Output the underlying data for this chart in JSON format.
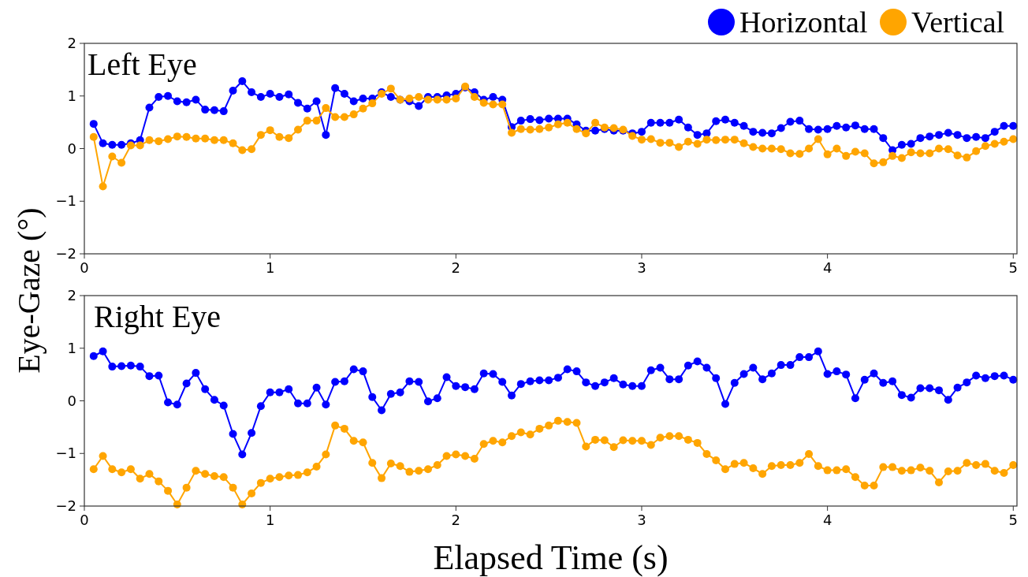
{
  "chart_data": [
    {
      "type": "line",
      "title": "Left Eye",
      "ylabel": "Eye-Gaze (°)",
      "legend": "top right",
      "marker": "circle",
      "line_style": "solid",
      "grid": false,
      "x": [
        0.05,
        0.1,
        0.15,
        0.2,
        0.25,
        0.3,
        0.35,
        0.4,
        0.45,
        0.5,
        0.55,
        0.6,
        0.65,
        0.7,
        0.75,
        0.8,
        0.85,
        0.9,
        0.95,
        1.0,
        1.05,
        1.1,
        1.15,
        1.2,
        1.25,
        1.3,
        1.35,
        1.4,
        1.45,
        1.5,
        1.55,
        1.6,
        1.65,
        1.7,
        1.75,
        1.8,
        1.85,
        1.9,
        1.95,
        2.0,
        2.05,
        2.1,
        2.15,
        2.2,
        2.25,
        2.3,
        2.35,
        2.4,
        2.45,
        2.5,
        2.55,
        2.6,
        2.65,
        2.7,
        2.75,
        2.8,
        2.85,
        2.9,
        2.95,
        3.0,
        3.05,
        3.1,
        3.15,
        3.2,
        3.25,
        3.3,
        3.35,
        3.4,
        3.45,
        3.5,
        3.55,
        3.6,
        3.65,
        3.7,
        3.75,
        3.8,
        3.85,
        3.9,
        3.95,
        4.0,
        4.05,
        4.1,
        4.15,
        4.2,
        4.25,
        4.3,
        4.35,
        4.4,
        4.45,
        4.5,
        4.55,
        4.6,
        4.65,
        4.7,
        4.75,
        4.8,
        4.85,
        4.9,
        4.95,
        5.0
      ],
      "xlim": [
        0,
        5.02
      ],
      "xticks": [
        0,
        1,
        2,
        3,
        4,
        5
      ],
      "ylim": [
        -2,
        2
      ],
      "yticks": [
        -2,
        -1,
        0,
        1,
        2
      ],
      "series": [
        {
          "name": "Horizontal",
          "color": "#0000ff",
          "values": [
            0.47,
            0.1,
            0.07,
            0.07,
            0.1,
            0.16,
            0.78,
            0.98,
            1.0,
            0.9,
            0.88,
            0.93,
            0.74,
            0.73,
            0.71,
            1.1,
            1.28,
            1.07,
            0.98,
            1.04,
            0.98,
            1.03,
            0.87,
            0.76,
            0.9,
            0.26,
            1.15,
            1.04,
            0.9,
            0.95,
            0.95,
            1.07,
            0.98,
            0.93,
            0.9,
            0.81,
            0.98,
            0.98,
            1.01,
            1.04,
            1.16,
            1.07,
            0.93,
            0.98,
            0.93,
            0.41,
            0.53,
            0.56,
            0.54,
            0.57,
            0.57,
            0.57,
            0.46,
            0.34,
            0.34,
            0.37,
            0.34,
            0.34,
            0.29,
            0.32,
            0.49,
            0.49,
            0.49,
            0.55,
            0.4,
            0.26,
            0.29,
            0.52,
            0.55,
            0.49,
            0.43,
            0.32,
            0.3,
            0.29,
            0.39,
            0.51,
            0.53,
            0.37,
            0.36,
            0.37,
            0.43,
            0.4,
            0.44,
            0.37,
            0.37,
            0.2,
            -0.03,
            0.07,
            0.09,
            0.2,
            0.23,
            0.26,
            0.3,
            0.26,
            0.2,
            0.22,
            0.2,
            0.32,
            0.43,
            0.43
          ]
        },
        {
          "name": "Vertical",
          "color": "#ffa500",
          "values": [
            0.22,
            -0.72,
            -0.15,
            -0.27,
            0.06,
            0.06,
            0.16,
            0.14,
            0.18,
            0.23,
            0.22,
            0.19,
            0.19,
            0.16,
            0.16,
            0.1,
            -0.03,
            -0.01,
            0.26,
            0.35,
            0.22,
            0.2,
            0.36,
            0.53,
            0.53,
            0.77,
            0.6,
            0.6,
            0.65,
            0.76,
            0.86,
            1.04,
            1.14,
            0.93,
            0.95,
            0.98,
            0.93,
            0.93,
            0.93,
            0.95,
            1.18,
            0.98,
            0.87,
            0.84,
            0.84,
            0.3,
            0.37,
            0.36,
            0.37,
            0.4,
            0.46,
            0.49,
            0.37,
            0.29,
            0.49,
            0.4,
            0.39,
            0.36,
            0.24,
            0.17,
            0.18,
            0.11,
            0.11,
            0.03,
            0.13,
            0.09,
            0.17,
            0.16,
            0.17,
            0.17,
            0.1,
            0.03,
            0.0,
            0.0,
            -0.01,
            -0.09,
            -0.1,
            0.0,
            0.18,
            -0.11,
            0.0,
            -0.14,
            -0.06,
            -0.09,
            -0.28,
            -0.26,
            -0.14,
            -0.18,
            -0.07,
            -0.09,
            -0.09,
            0.0,
            -0.01,
            -0.13,
            -0.17,
            -0.05,
            0.05,
            0.09,
            0.13,
            0.18
          ]
        }
      ]
    },
    {
      "type": "line",
      "title": "Right Eye",
      "xlabel": "Elapsed Time (s)",
      "marker": "circle",
      "line_style": "solid",
      "grid": false,
      "x": [
        0.05,
        0.1,
        0.15,
        0.2,
        0.25,
        0.3,
        0.35,
        0.4,
        0.45,
        0.5,
        0.55,
        0.6,
        0.65,
        0.7,
        0.75,
        0.8,
        0.85,
        0.9,
        0.95,
        1.0,
        1.05,
        1.1,
        1.15,
        1.2,
        1.25,
        1.3,
        1.35,
        1.4,
        1.45,
        1.5,
        1.55,
        1.6,
        1.65,
        1.7,
        1.75,
        1.8,
        1.85,
        1.9,
        1.95,
        2.0,
        2.05,
        2.1,
        2.15,
        2.2,
        2.25,
        2.3,
        2.35,
        2.4,
        2.45,
        2.5,
        2.55,
        2.6,
        2.65,
        2.7,
        2.75,
        2.8,
        2.85,
        2.9,
        2.95,
        3.0,
        3.05,
        3.1,
        3.15,
        3.2,
        3.25,
        3.3,
        3.35,
        3.4,
        3.45,
        3.5,
        3.55,
        3.6,
        3.65,
        3.7,
        3.75,
        3.8,
        3.85,
        3.9,
        3.95,
        4.0,
        4.05,
        4.1,
        4.15,
        4.2,
        4.25,
        4.3,
        4.35,
        4.4,
        4.45,
        4.5,
        4.55,
        4.6,
        4.65,
        4.7,
        4.75,
        4.8,
        4.85,
        4.9,
        4.95,
        5.0
      ],
      "xlim": [
        0,
        5.02
      ],
      "xticks": [
        0,
        1,
        2,
        3,
        4,
        5
      ],
      "ylim": [
        -2,
        2
      ],
      "yticks": [
        -2,
        -1,
        0,
        1,
        2
      ],
      "series": [
        {
          "color": "#0000ff",
          "values": [
            0.85,
            0.94,
            0.65,
            0.66,
            0.67,
            0.65,
            0.47,
            0.48,
            -0.03,
            -0.07,
            0.33,
            0.53,
            0.22,
            0.02,
            -0.09,
            -0.63,
            -1.02,
            -0.61,
            -0.1,
            0.16,
            0.16,
            0.22,
            -0.05,
            -0.05,
            0.25,
            -0.07,
            0.36,
            0.37,
            0.6,
            0.56,
            0.07,
            -0.18,
            0.13,
            0.16,
            0.37,
            0.36,
            -0.01,
            0.05,
            0.45,
            0.28,
            0.26,
            0.22,
            0.52,
            0.51,
            0.36,
            0.1,
            0.32,
            0.37,
            0.39,
            0.39,
            0.44,
            0.6,
            0.56,
            0.35,
            0.28,
            0.35,
            0.43,
            0.31,
            0.28,
            0.28,
            0.58,
            0.63,
            0.41,
            0.41,
            0.67,
            0.75,
            0.63,
            0.43,
            -0.06,
            0.34,
            0.51,
            0.63,
            0.41,
            0.52,
            0.68,
            0.68,
            0.83,
            0.83,
            0.94,
            0.51,
            0.56,
            0.5,
            0.05,
            0.4,
            0.52,
            0.34,
            0.37,
            0.11,
            0.06,
            0.24,
            0.24,
            0.2,
            0.02,
            0.25,
            0.35,
            0.48,
            0.43,
            0.47,
            0.48,
            0.4
          ]
        },
        {
          "color": "#ffa500",
          "values": [
            -1.3,
            -1.05,
            -1.3,
            -1.36,
            -1.3,
            -1.48,
            -1.39,
            -1.53,
            -1.71,
            -1.97,
            -1.65,
            -1.33,
            -1.39,
            -1.43,
            -1.45,
            -1.65,
            -1.97,
            -1.76,
            -1.56,
            -1.48,
            -1.45,
            -1.42,
            -1.41,
            -1.36,
            -1.25,
            -1.02,
            -0.47,
            -0.53,
            -0.76,
            -0.79,
            -1.18,
            -1.47,
            -1.19,
            -1.24,
            -1.35,
            -1.33,
            -1.3,
            -1.22,
            -1.05,
            -1.02,
            -1.05,
            -1.1,
            -0.82,
            -0.76,
            -0.79,
            -0.67,
            -0.6,
            -0.64,
            -0.53,
            -0.47,
            -0.38,
            -0.4,
            -0.42,
            -0.87,
            -0.74,
            -0.75,
            -0.88,
            -0.75,
            -0.76,
            -0.76,
            -0.84,
            -0.7,
            -0.67,
            -0.67,
            -0.74,
            -0.8,
            -1.01,
            -1.13,
            -1.3,
            -1.2,
            -1.18,
            -1.28,
            -1.39,
            -1.24,
            -1.22,
            -1.22,
            -1.18,
            -1.01,
            -1.24,
            -1.32,
            -1.32,
            -1.3,
            -1.45,
            -1.61,
            -1.61,
            -1.26,
            -1.26,
            -1.33,
            -1.32,
            -1.27,
            -1.33,
            -1.55,
            -1.34,
            -1.33,
            -1.18,
            -1.22,
            -1.2,
            -1.33,
            -1.37,
            -1.22
          ]
        }
      ]
    }
  ]
}
